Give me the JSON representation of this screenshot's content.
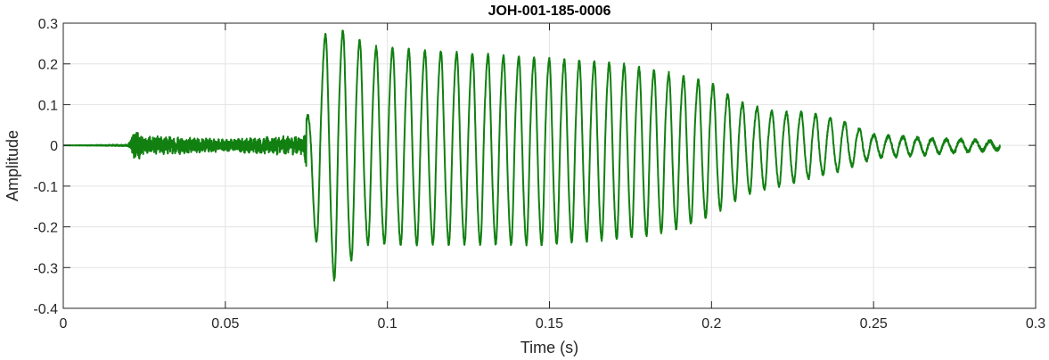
{
  "chart_data": {
    "type": "line",
    "title": "JOH-001-185-0006",
    "xlabel": "Time (s)",
    "ylabel": "Amplitude",
    "xlim": [
      0,
      0.3
    ],
    "ylim": [
      -0.4,
      0.3
    ],
    "x_ticks": [
      0,
      0.05,
      0.1,
      0.15,
      0.2,
      0.25,
      0.3
    ],
    "y_ticks": [
      -0.4,
      -0.3,
      -0.2,
      -0.1,
      0,
      0.1,
      0.2,
      0.3
    ],
    "x_tick_labels": [
      "0",
      "0.05",
      "0.1",
      "0.15",
      "0.2",
      "0.25",
      "0.3"
    ],
    "y_tick_labels": [
      "-0.4",
      "-0.3",
      "-0.2",
      "-0.1",
      "0",
      "0.1",
      "0.2",
      "0.3"
    ],
    "grid": true,
    "series": [
      {
        "color": "#118011",
        "x_range": [
          0,
          0.289
        ],
        "envelope_points": [
          [
            0.0,
            0.0
          ],
          [
            0.02,
            0.002
          ],
          [
            0.022,
            0.04
          ],
          [
            0.025,
            0.02
          ],
          [
            0.03,
            0.022
          ],
          [
            0.05,
            0.015
          ],
          [
            0.07,
            0.022
          ],
          [
            0.074,
            0.02
          ],
          [
            0.076,
            0.1
          ],
          [
            0.079,
            0.25
          ],
          [
            0.083,
            0.29
          ],
          [
            0.088,
            0.27
          ],
          [
            0.095,
            0.24
          ],
          [
            0.11,
            0.23
          ],
          [
            0.13,
            0.22
          ],
          [
            0.15,
            0.21
          ],
          [
            0.17,
            0.2
          ],
          [
            0.19,
            0.17
          ],
          [
            0.2,
            0.15
          ],
          [
            0.21,
            0.1
          ],
          [
            0.22,
            0.08
          ],
          [
            0.23,
            0.08
          ],
          [
            0.24,
            0.06
          ],
          [
            0.25,
            0.025
          ],
          [
            0.27,
            0.015
          ],
          [
            0.289,
            0.01
          ]
        ],
        "neg_envelope_points": [
          [
            0.0,
            0.0
          ],
          [
            0.074,
            -0.02
          ],
          [
            0.077,
            -0.2
          ],
          [
            0.08,
            -0.29
          ],
          [
            0.084,
            -0.33
          ],
          [
            0.088,
            -0.29
          ],
          [
            0.092,
            -0.24
          ],
          [
            0.1,
            -0.24
          ],
          [
            0.15,
            -0.24
          ],
          [
            0.18,
            -0.22
          ],
          [
            0.19,
            -0.2
          ],
          [
            0.2,
            -0.17
          ],
          [
            0.21,
            -0.12
          ],
          [
            0.22,
            -0.1
          ],
          [
            0.23,
            -0.08
          ],
          [
            0.24,
            -0.06
          ],
          [
            0.25,
            -0.03
          ],
          [
            0.27,
            -0.02
          ],
          [
            0.289,
            -0.01
          ]
        ],
        "frequency_hz": [
          [
            0.075,
            170
          ],
          [
            0.09,
            195
          ],
          [
            0.15,
            215
          ],
          [
            0.2,
            220
          ],
          [
            0.289,
            225
          ]
        ]
      }
    ]
  }
}
